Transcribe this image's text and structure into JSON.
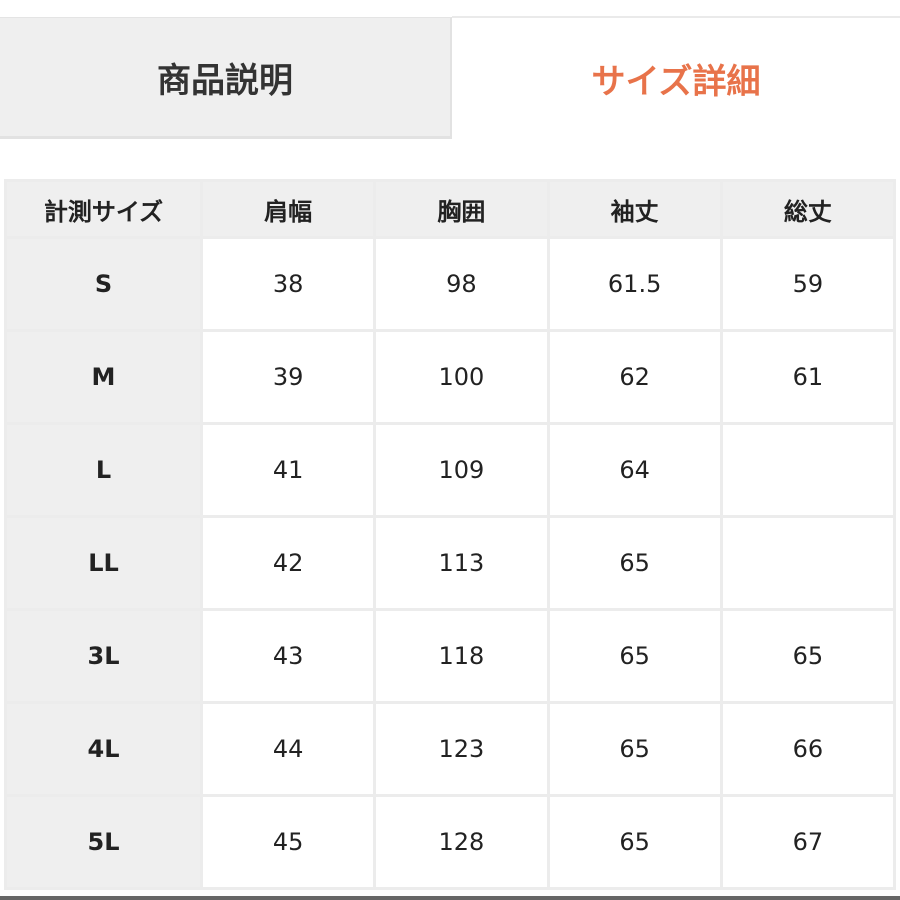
{
  "tabs": [
    {
      "label": "商品説明",
      "active": false
    },
    {
      "label": "サイズ詳細",
      "active": true
    }
  ],
  "colors": {
    "active_tab": "#e8734a",
    "header_bg": "#efefef"
  },
  "table": {
    "headers": [
      "計測サイズ",
      "肩幅",
      "胸囲",
      "袖丈",
      "総丈"
    ],
    "rows": [
      [
        "S",
        "38",
        "98",
        "61.5",
        "59"
      ],
      [
        "M",
        "39",
        "100",
        "62",
        "61"
      ],
      [
        "L",
        "41",
        "109",
        "64",
        ""
      ],
      [
        "LL",
        "42",
        "113",
        "65",
        ""
      ],
      [
        "3L",
        "43",
        "118",
        "65",
        "65"
      ],
      [
        "4L",
        "44",
        "123",
        "65",
        "66"
      ],
      [
        "5L",
        "45",
        "128",
        "65",
        "67"
      ]
    ]
  }
}
